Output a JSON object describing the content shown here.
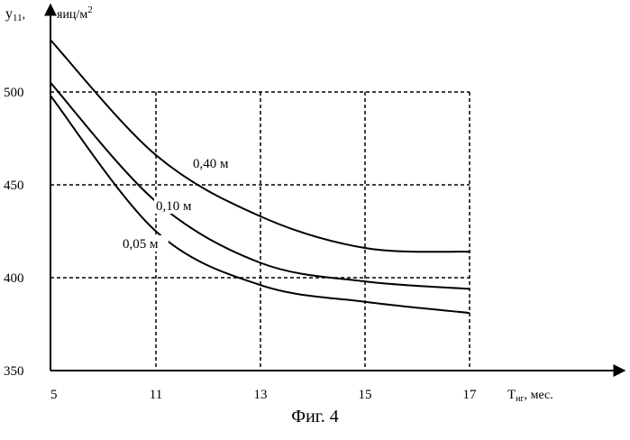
{
  "chart_data": {
    "type": "line",
    "caption": "Фиг. 4",
    "ylabel": {
      "symbol": "y",
      "sub": "11",
      "comma": ",",
      "unit": "яиц/м",
      "unit_sup": "2"
    },
    "xlabel": {
      "symbol": "T",
      "sub": "нг",
      "unit": ", мес."
    },
    "x_ticks": [
      "5",
      "11",
      "13",
      "15",
      "17"
    ],
    "y_ticks": [
      "350",
      "400",
      "450",
      "500"
    ],
    "y_tick_values": [
      350,
      400,
      450,
      500
    ],
    "ylim": [
      350,
      530
    ],
    "grid": true,
    "grid_style": "dashed",
    "series": [
      {
        "name": "0,40 м",
        "values": [
          528,
          466,
          433,
          416,
          414
        ]
      },
      {
        "name": "0,10 м",
        "values": [
          505,
          441,
          408,
          398,
          394
        ]
      },
      {
        "name": "0,05 м",
        "values": [
          498,
          425,
          396,
          387,
          381
        ]
      }
    ]
  }
}
